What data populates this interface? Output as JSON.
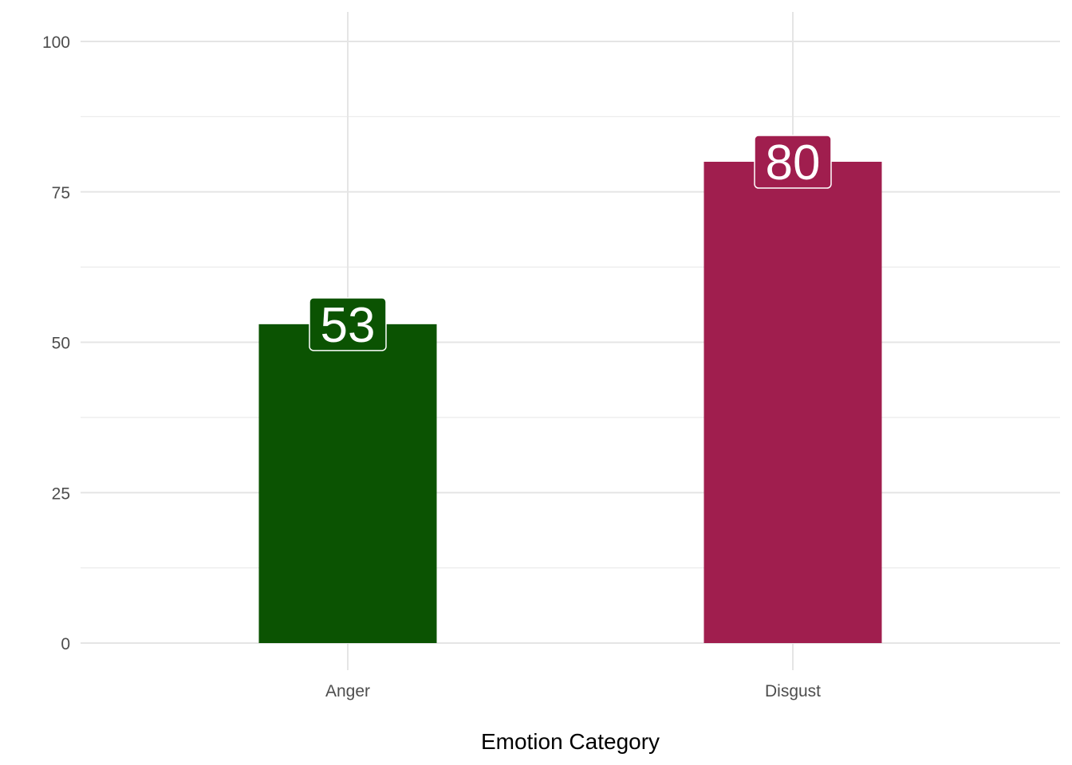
{
  "chart_data": {
    "type": "bar",
    "categories": [
      "Anger",
      "Disgust"
    ],
    "values": [
      53,
      80
    ],
    "colors": [
      "#0b5302",
      "#a01e4e"
    ],
    "data_labels": [
      "53",
      "80"
    ],
    "title": "",
    "xlabel": "Emotion Category",
    "ylabel": "",
    "ylim": [
      0,
      100
    ],
    "yticks": [
      0,
      25,
      50,
      75,
      100
    ],
    "ytick_labels": [
      "0",
      "25",
      "50",
      "75",
      "100"
    ],
    "grid": true,
    "legend": "none"
  }
}
